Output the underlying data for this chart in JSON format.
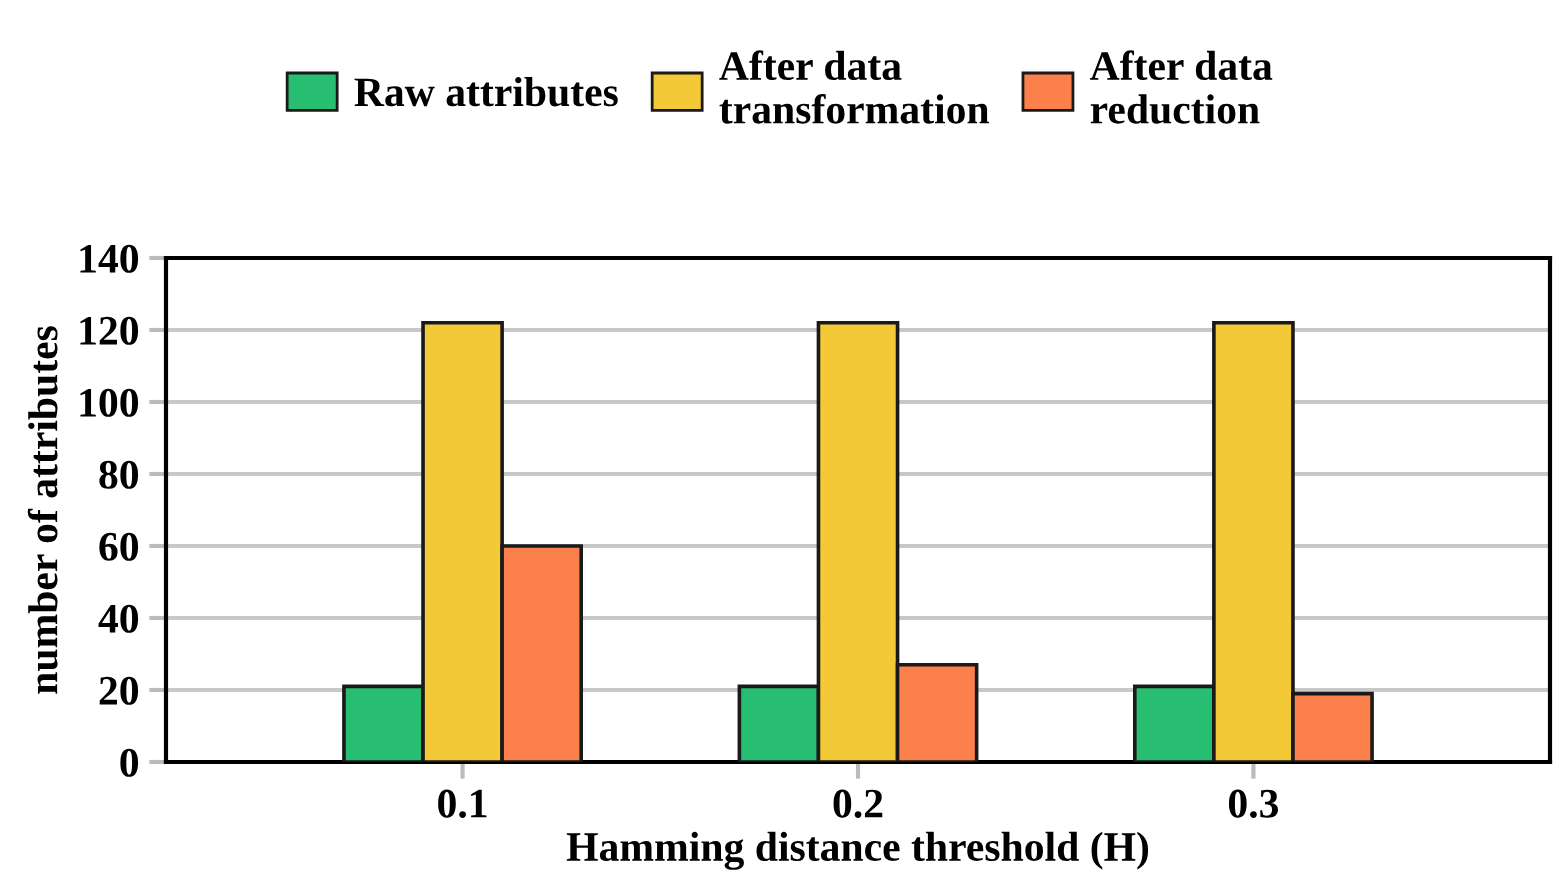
{
  "chart_data": {
    "type": "bar",
    "xlabel": "Hamming distance threshold (H)",
    "ylabel": "number of attributes",
    "categories": [
      "0.1",
      "0.2",
      "0.3"
    ],
    "series": [
      {
        "name": "Raw attributes",
        "color": "#27be72",
        "values": [
          21,
          21,
          21
        ]
      },
      {
        "name": "After data\ntransformation",
        "color": "#f3c937",
        "values": [
          122,
          122,
          122
        ]
      },
      {
        "name": "After data\nreduction",
        "color": "#fb804c",
        "values": [
          60,
          27,
          19
        ]
      }
    ],
    "ylim": [
      0,
      140
    ],
    "yticks": [
      0,
      20,
      40,
      60,
      80,
      100,
      120,
      140
    ],
    "grid": "y",
    "legend": "top"
  }
}
